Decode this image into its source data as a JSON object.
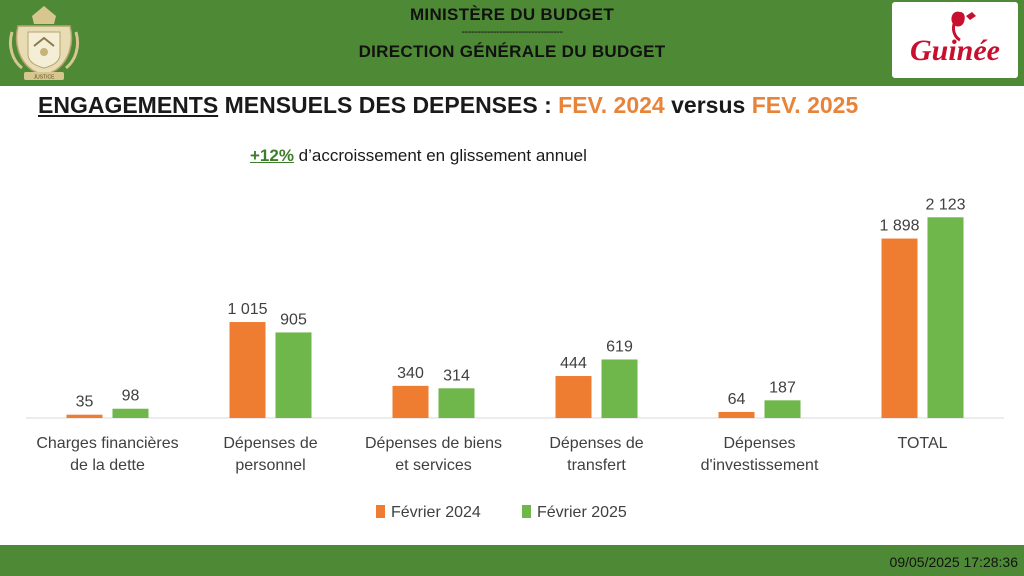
{
  "header": {
    "ministry": "MINISTÈRE DU BUDGET",
    "separator": "--------------------------------",
    "direction": "DIRECTION GÉNÉRALE DU BUDGET",
    "emblem_motto": "JUSTICE",
    "logo_text": "Guinée"
  },
  "title": {
    "part1": "ENGAGEMENTS",
    "part2": " MENSUELS DES DEPENSES : ",
    "period1": "FEV. 2024",
    "versus": " versus ",
    "period2": "FEV. 2025"
  },
  "subtitle": {
    "percent": "+12%",
    "text": " d’accroissement en glissement annuel"
  },
  "chart_data": {
    "type": "bar",
    "categories": [
      [
        "Charges financières",
        "de la dette"
      ],
      [
        "Dépenses de",
        "personnel"
      ],
      [
        "Dépenses de biens",
        "et services"
      ],
      [
        "Dépenses de",
        "transfert"
      ],
      [
        "Dépenses",
        "d'investissement"
      ],
      [
        "TOTAL"
      ]
    ],
    "series": [
      {
        "name": "Février 2024",
        "values": [
          35,
          1015,
          340,
          444,
          64,
          1898
        ],
        "labels": [
          "35",
          "1 015",
          "340",
          "444",
          "64",
          "1 898"
        ],
        "color": "#ee7d32"
      },
      {
        "name": "Février 2025",
        "values": [
          98,
          905,
          314,
          619,
          187,
          2123
        ],
        "labels": [
          "98",
          "905",
          "314",
          "619",
          "187",
          "2 123"
        ],
        "color": "#6fb64b"
      }
    ],
    "ylim": [
      0,
      2200
    ],
    "legend": "bottom-center",
    "grid": false
  },
  "footer": {
    "timestamp": "09/05/2025 17:28:36"
  }
}
